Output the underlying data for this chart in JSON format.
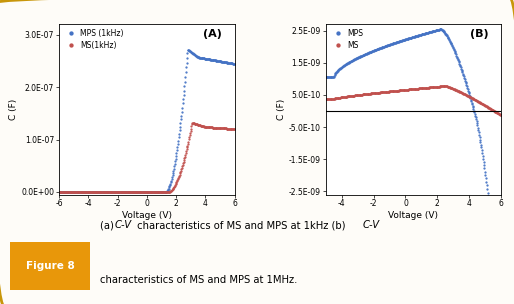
{
  "fig_bg": "#FEFCF8",
  "border_color": "#C8960A",
  "panel_A": {
    "label": "(A)",
    "legend": [
      "MPS (1kHz)",
      "MS(1kHz)"
    ],
    "legend_colors": [
      "#4472C4",
      "#C0504D"
    ],
    "xlabel": "Voltage (V)",
    "ylabel": "C (F)",
    "xlim": [
      -6,
      6
    ],
    "ylim": [
      -5e-09,
      3.2e-07
    ],
    "yticks": [
      0,
      1e-07,
      2e-07,
      3e-07
    ],
    "ytick_labels": [
      "0.0E+00",
      "1.0E-07",
      "2.0E-07",
      "3.0E-07"
    ],
    "xticks": [
      -6,
      -4,
      -2,
      0,
      2,
      4,
      6
    ]
  },
  "panel_B": {
    "label": "(B)",
    "legend": [
      "MPS",
      "MS"
    ],
    "legend_colors": [
      "#4472C4",
      "#C0504D"
    ],
    "xlabel": "Voltage (V)",
    "ylabel": "C (F)",
    "xlim": [
      -5,
      6
    ],
    "ylim": [
      -2.6e-09,
      2.7e-09
    ],
    "yticks": [
      -2.5e-09,
      -1.5e-09,
      -5e-10,
      5e-10,
      1.5e-09,
      2.5e-09
    ],
    "ytick_labels": [
      "-2.5E-09",
      "-1.5E-09",
      "-5.0E-10",
      "5.0E-10",
      "1.5E-09",
      "2.5E-09"
    ],
    "xticks": [
      -4,
      -2,
      0,
      2,
      4,
      6
    ],
    "hline_y": 0.0
  },
  "caption_label": "Figure 8",
  "caption_line1_parts": [
    "(a) ",
    "C-V",
    " characteristics of MS and MPS at 1kHz (b) ",
    "C-V"
  ],
  "caption_line2": "characteristics of MS and MPS at 1MHz."
}
